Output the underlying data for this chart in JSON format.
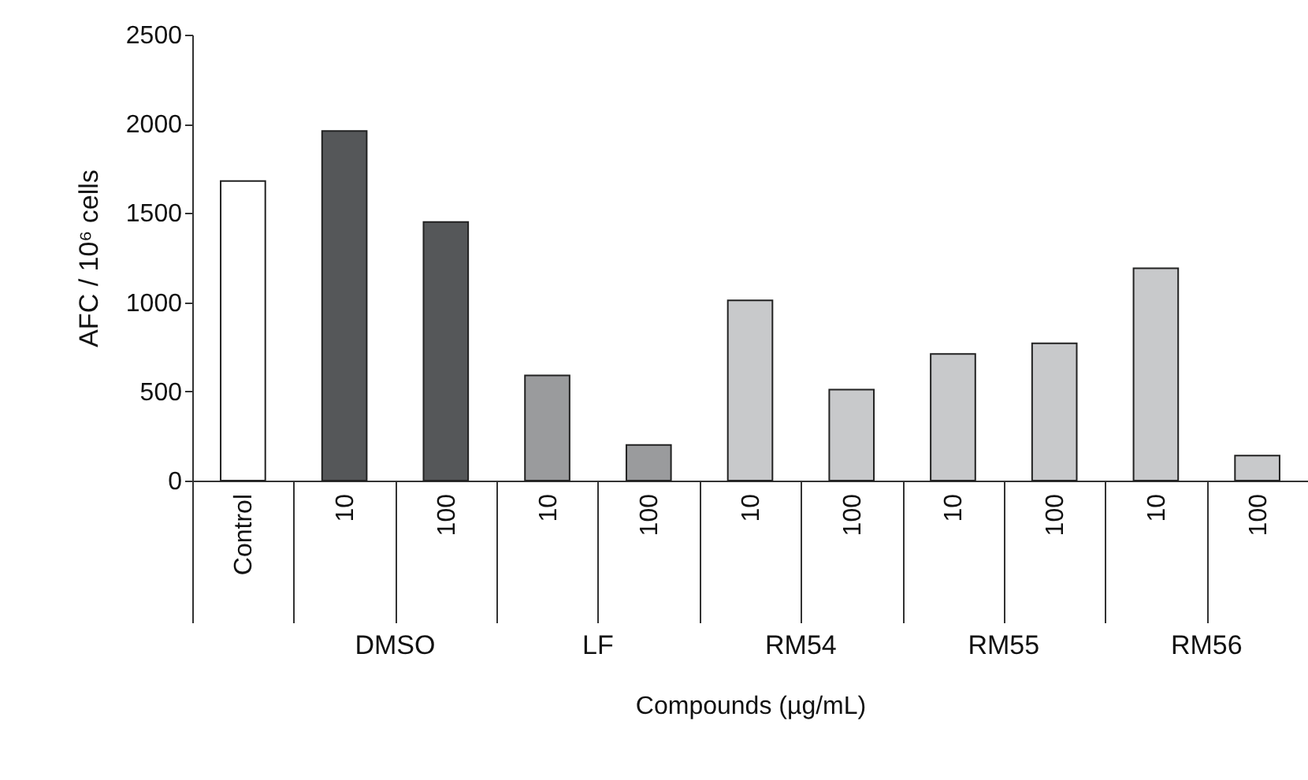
{
  "chart_data": {
    "type": "bar",
    "xlabel": "Compounds (µg/mL)",
    "ylabel": "AFC / 10⁶ cells",
    "categories": [
      "Control",
      "10",
      "100",
      "10",
      "100",
      "10",
      "100",
      "10",
      "100",
      "10",
      "100"
    ],
    "values": [
      1680,
      1960,
      1450,
      590,
      200,
      1010,
      510,
      710,
      770,
      1190,
      140
    ],
    "colors": [
      "#ffffff",
      "#555759",
      "#555759",
      "#9a9b9d",
      "#9a9b9d",
      "#c8c9cb",
      "#c8c9cb",
      "#c8c9cb",
      "#c8c9cb",
      "#c8c9cb",
      "#c8c9cb"
    ],
    "annotations": [
      "DMSO",
      "LF",
      "RM54",
      "RM55",
      "RM56"
    ],
    "ylim": [
      0,
      2500
    ],
    "yticks": [
      0,
      500,
      1000,
      1500,
      2000,
      2500
    ],
    "grid": false
  }
}
